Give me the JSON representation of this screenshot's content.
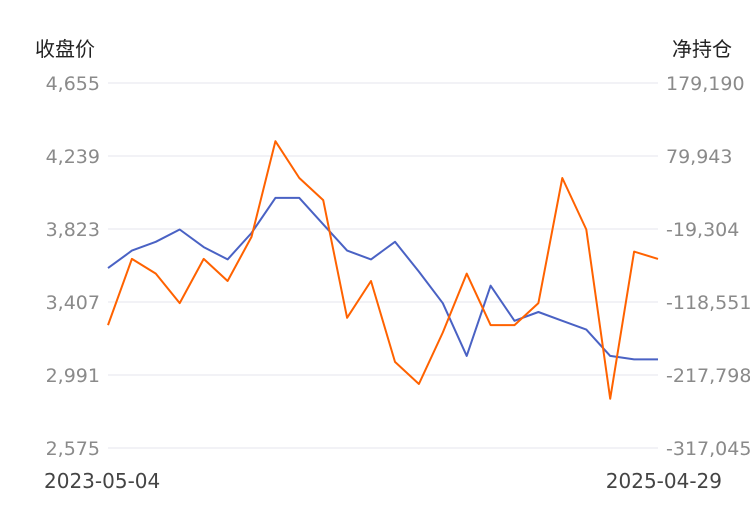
{
  "chart_data": {
    "type": "line",
    "y_left_label": "收盘价",
    "y_right_label": "净持仓",
    "y_left_ticks": [
      "4,655",
      "4,239",
      "3,823",
      "3,407",
      "2,991",
      "2,575"
    ],
    "y_right_ticks": [
      "179,190",
      "79,943",
      "-19,304",
      "-118,551",
      "-217,798",
      "-317,045"
    ],
    "y_left_range": [
      2575,
      4655
    ],
    "y_right_range": [
      -317045,
      179190
    ],
    "grid": "horizontal",
    "x_start_label": "2023-05-04",
    "x_end_label": "2025-04-29",
    "x": [
      "2023-05",
      "2023-06",
      "2023-07",
      "2023-08",
      "2023-09",
      "2023-10",
      "2023-11",
      "2023-12",
      "2024-01",
      "2024-02",
      "2024-03",
      "2024-04",
      "2024-05",
      "2024-06",
      "2024-07",
      "2024-08",
      "2024-09",
      "2024-10",
      "2024-11",
      "2024-12",
      "2025-01",
      "2025-02",
      "2025-03",
      "2025-04"
    ],
    "series": [
      {
        "axis": "left",
        "color": "#4a62c4",
        "values": [
          3600,
          3700,
          3750,
          3820,
          3720,
          3650,
          3800,
          4000,
          4000,
          3850,
          3700,
          3650,
          3750,
          3580,
          3400,
          3100,
          3500,
          3300,
          3350,
          3300,
          3250,
          3100,
          3080,
          3080
        ]
      },
      {
        "axis": "right",
        "color": "#ff6200",
        "values": [
          -150000,
          -60000,
          -80000,
          -120000,
          -60000,
          -90000,
          -30000,
          100000,
          50000,
          20000,
          -140000,
          -90000,
          -200000,
          -230000,
          -160000,
          -80000,
          -150000,
          -150000,
          -120000,
          50000,
          -20000,
          -250000,
          -50000,
          -60000
        ]
      }
    ]
  }
}
